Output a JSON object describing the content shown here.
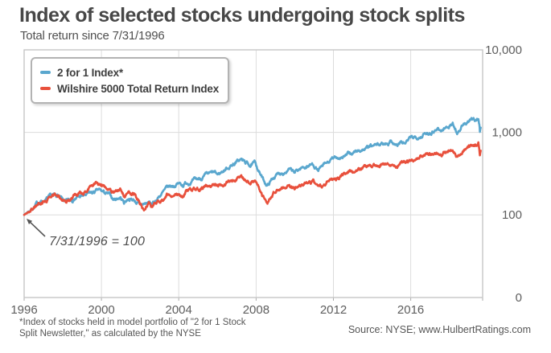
{
  "header": {
    "title": "Index of selected stocks undergoing stock splits",
    "subtitle": "Total return since 7/31/1996"
  },
  "legend": {
    "items": [
      {
        "label": "2 for 1 Index*",
        "color": "#5AA7CE"
      },
      {
        "label": "Wilshire 5000 Total Return Index",
        "color": "#E8503C"
      }
    ]
  },
  "annotation": {
    "text": "7/31/1996 = 100"
  },
  "footer": {
    "footnote_line1": "*Index of stocks held in model portfolio of \"2 for 1 Stock",
    "footnote_line2": "Split Newsletter,\" as calculated by the NYSE",
    "source": "Source: NYSE; www.HulbertRatings.com"
  },
  "chart_data": {
    "type": "line",
    "title": "Index of selected stocks undergoing stock splits",
    "subtitle": "Total return since 7/31/1996",
    "base_value_note": "7/31/1996 = 100",
    "x_axis": {
      "min_year": 1996.58,
      "max_year": 2020.3,
      "ticks": [
        {
          "year": 1996.58,
          "label": "1996"
        },
        {
          "year": 2000.58,
          "label": "2000"
        },
        {
          "year": 2004.58,
          "label": "2004"
        },
        {
          "year": 2008.58,
          "label": "2008"
        },
        {
          "year": 2012.58,
          "label": "2012"
        },
        {
          "year": 2016.58,
          "label": "2016"
        }
      ]
    },
    "y_axis": {
      "scale": "log",
      "gridline_values": [
        10000,
        1000,
        100
      ],
      "labels": [
        {
          "value": 10000,
          "label": "10,000"
        },
        {
          "value": 1000,
          "label": "1,000"
        },
        {
          "value": 100,
          "label": "100"
        },
        {
          "value": 0,
          "label": "0"
        }
      ]
    },
    "series": [
      {
        "name": "2 for 1 Index*",
        "color": "#5AA7CE",
        "points": [
          [
            1996.58,
            100
          ],
          [
            1996.9,
            115
          ],
          [
            1997.3,
            140
          ],
          [
            1997.8,
            158
          ],
          [
            1998.3,
            172
          ],
          [
            1998.55,
            150
          ],
          [
            1998.75,
            140
          ],
          [
            1999.2,
            162
          ],
          [
            1999.7,
            170
          ],
          [
            2000.1,
            182
          ],
          [
            2000.45,
            196
          ],
          [
            2000.8,
            180
          ],
          [
            2001.0,
            172
          ],
          [
            2001.2,
            152
          ],
          [
            2001.55,
            165
          ],
          [
            2001.75,
            142
          ],
          [
            2002.0,
            160
          ],
          [
            2002.3,
            150
          ],
          [
            2002.6,
            128
          ],
          [
            2002.8,
            135
          ],
          [
            2003.05,
            140
          ],
          [
            2003.2,
            132
          ],
          [
            2003.6,
            172
          ],
          [
            2004.0,
            210
          ],
          [
            2004.55,
            240
          ],
          [
            2004.8,
            232
          ],
          [
            2005.0,
            248
          ],
          [
            2005.5,
            262
          ],
          [
            2006.0,
            298
          ],
          [
            2006.4,
            318
          ],
          [
            2006.6,
            302
          ],
          [
            2007.0,
            360
          ],
          [
            2007.5,
            430
          ],
          [
            2007.8,
            468
          ],
          [
            2008.05,
            425
          ],
          [
            2008.3,
            400
          ],
          [
            2008.55,
            420
          ],
          [
            2008.75,
            330
          ],
          [
            2008.95,
            262
          ],
          [
            2009.17,
            228
          ],
          [
            2009.5,
            288
          ],
          [
            2009.9,
            330
          ],
          [
            2010.3,
            352
          ],
          [
            2010.55,
            318
          ],
          [
            2010.9,
            368
          ],
          [
            2011.3,
            398
          ],
          [
            2011.55,
            412
          ],
          [
            2011.78,
            348
          ],
          [
            2011.95,
            368
          ],
          [
            2012.2,
            408
          ],
          [
            2012.55,
            470
          ],
          [
            2013.0,
            510
          ],
          [
            2013.5,
            550
          ],
          [
            2013.9,
            600
          ],
          [
            2014.4,
            650
          ],
          [
            2014.9,
            700
          ],
          [
            2015.4,
            760
          ],
          [
            2015.6,
            790
          ],
          [
            2015.88,
            700
          ],
          [
            2016.1,
            760
          ],
          [
            2016.25,
            720
          ],
          [
            2016.6,
            840
          ],
          [
            2017.0,
            910
          ],
          [
            2017.5,
            990
          ],
          [
            2018.0,
            1140
          ],
          [
            2018.15,
            1040
          ],
          [
            2018.5,
            1180
          ],
          [
            2018.75,
            1280
          ],
          [
            2018.98,
            1000
          ],
          [
            2019.3,
            1230
          ],
          [
            2019.6,
            1340
          ],
          [
            2019.9,
            1430
          ],
          [
            2020.08,
            1480
          ],
          [
            2020.13,
            1250
          ],
          [
            2020.16,
            1020
          ],
          [
            2020.2,
            1140
          ]
        ]
      },
      {
        "name": "Wilshire 5000 Total Return Index",
        "color": "#E8503C",
        "points": [
          [
            1996.58,
            100
          ],
          [
            1996.9,
            112
          ],
          [
            1997.3,
            135
          ],
          [
            1997.8,
            155
          ],
          [
            1998.3,
            175
          ],
          [
            1998.55,
            158
          ],
          [
            1998.75,
            142
          ],
          [
            1999.2,
            172
          ],
          [
            1999.7,
            182
          ],
          [
            2000.1,
            232
          ],
          [
            2000.3,
            248
          ],
          [
            2000.6,
            238
          ],
          [
            2001.0,
            215
          ],
          [
            2001.2,
            188
          ],
          [
            2001.55,
            205
          ],
          [
            2001.75,
            172
          ],
          [
            2002.0,
            190
          ],
          [
            2002.3,
            178
          ],
          [
            2002.6,
            135
          ],
          [
            2002.78,
            120
          ],
          [
            2003.05,
            133
          ],
          [
            2003.2,
            125
          ],
          [
            2003.6,
            152
          ],
          [
            2004.0,
            172
          ],
          [
            2004.55,
            185
          ],
          [
            2004.8,
            178
          ],
          [
            2005.0,
            190
          ],
          [
            2005.5,
            198
          ],
          [
            2006.0,
            214
          ],
          [
            2006.4,
            226
          ],
          [
            2006.6,
            218
          ],
          [
            2007.0,
            244
          ],
          [
            2007.5,
            268
          ],
          [
            2007.8,
            288
          ],
          [
            2008.05,
            262
          ],
          [
            2008.3,
            248
          ],
          [
            2008.55,
            258
          ],
          [
            2008.75,
            205
          ],
          [
            2008.95,
            168
          ],
          [
            2009.17,
            148
          ],
          [
            2009.5,
            182
          ],
          [
            2009.9,
            212
          ],
          [
            2010.3,
            226
          ],
          [
            2010.55,
            205
          ],
          [
            2010.9,
            232
          ],
          [
            2011.3,
            248
          ],
          [
            2011.55,
            255
          ],
          [
            2011.78,
            212
          ],
          [
            2011.95,
            225
          ],
          [
            2012.2,
            242
          ],
          [
            2012.55,
            268
          ],
          [
            2013.0,
            298
          ],
          [
            2013.5,
            330
          ],
          [
            2013.9,
            365
          ],
          [
            2014.4,
            390
          ],
          [
            2014.9,
            412
          ],
          [
            2015.4,
            428
          ],
          [
            2015.6,
            435
          ],
          [
            2015.88,
            390
          ],
          [
            2016.1,
            420
          ],
          [
            2016.25,
            405
          ],
          [
            2016.6,
            448
          ],
          [
            2017.0,
            485
          ],
          [
            2017.5,
            520
          ],
          [
            2018.0,
            575
          ],
          [
            2018.15,
            535
          ],
          [
            2018.5,
            590
          ],
          [
            2018.75,
            625
          ],
          [
            2018.98,
            505
          ],
          [
            2019.3,
            600
          ],
          [
            2019.6,
            655
          ],
          [
            2019.9,
            700
          ],
          [
            2020.08,
            745
          ],
          [
            2020.13,
            640
          ],
          [
            2020.16,
            545
          ],
          [
            2020.2,
            600
          ]
        ]
      }
    ]
  }
}
